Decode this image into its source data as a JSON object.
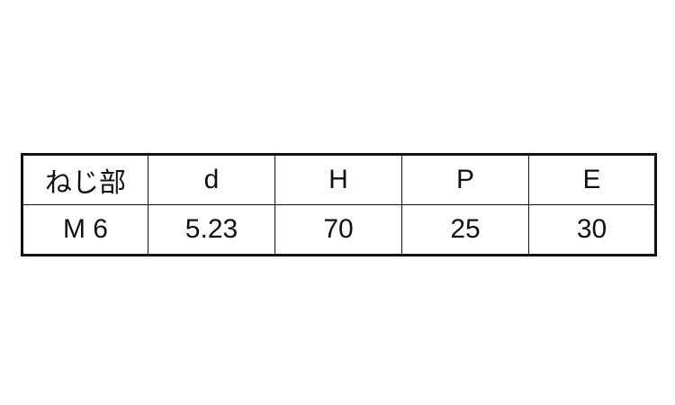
{
  "table": {
    "headers": [
      "ねじ部",
      "d",
      "H",
      "P",
      "E"
    ],
    "rows": [
      [
        "M 6",
        "5.23",
        "70",
        "25",
        "30"
      ]
    ]
  }
}
